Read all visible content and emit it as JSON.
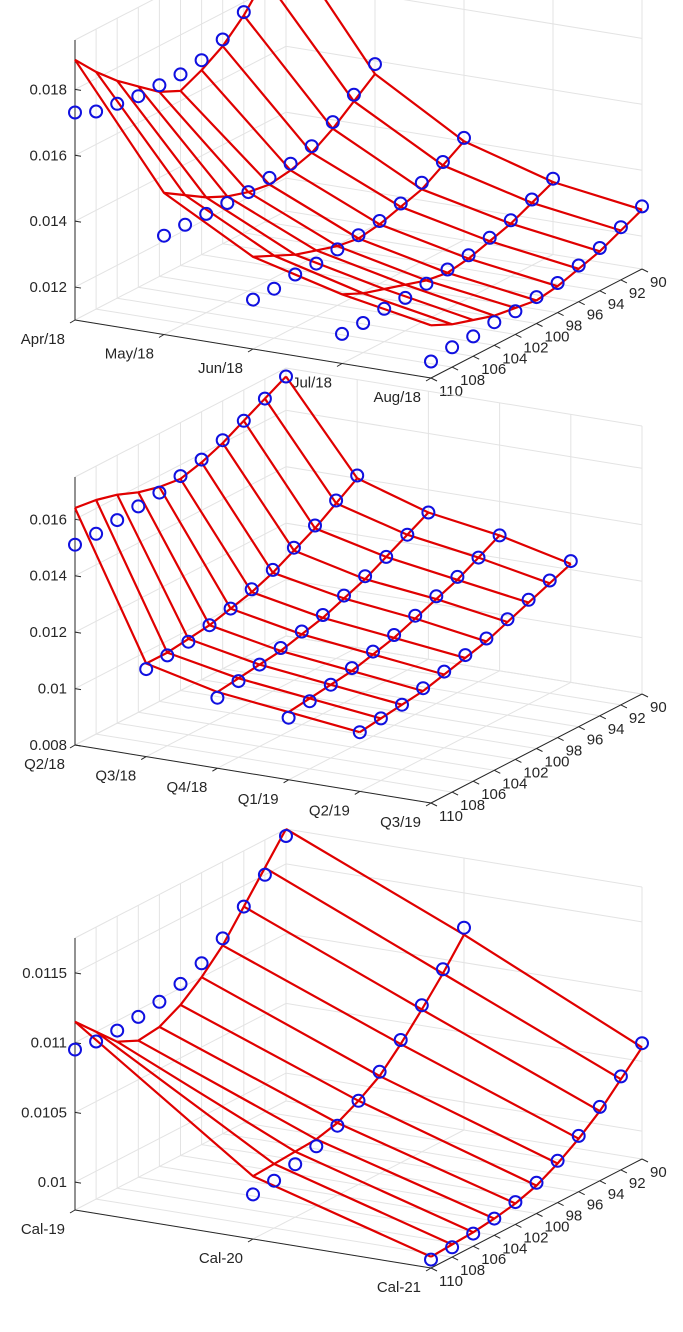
{
  "colors": {
    "surface": "#e00000",
    "markers": "#1010e0",
    "grid": "#e3e3e3",
    "axis": "#262626"
  },
  "chart_data": [
    {
      "type": "surface3d",
      "title": "",
      "grid": true,
      "x_ticks": [
        "Apr/18",
        "May/18",
        "Jun/18",
        "Jul/18",
        "Aug/18"
      ],
      "strike_ticks": [
        "90",
        "92",
        "94",
        "96",
        "98",
        "100",
        "102",
        "104",
        "106",
        "108",
        "110"
      ],
      "z_ticks": [
        "0.012",
        "0.014",
        "0.016",
        "0.018"
      ],
      "zlim": [
        0.011,
        0.0195
      ],
      "strike_range": [
        90,
        110
      ],
      "maturities": [
        0,
        1,
        2,
        3,
        4
      ],
      "strikes": [
        90,
        92,
        94,
        96,
        98,
        100,
        102,
        104,
        106,
        108,
        110
      ],
      "surface": [
        [
          0.0192,
          0.0184,
          0.0176,
          0.017,
          0.0166,
          0.0163,
          0.0166,
          0.0171,
          0.0176,
          0.0182,
          0.0189
        ],
        [
          0.0156,
          0.0151,
          0.0146,
          0.0142,
          0.014,
          0.0139,
          0.014,
          0.0142,
          0.0145,
          0.0149,
          0.0153
        ],
        [
          0.014,
          0.0136,
          0.0132,
          0.013,
          0.0128,
          0.0127,
          0.0128,
          0.013,
          0.0132,
          0.0135,
          0.0138
        ],
        [
          0.0132,
          0.0129,
          0.0126,
          0.0124,
          0.0122,
          0.0121,
          0.0122,
          0.0124,
          0.0126,
          0.0128,
          0.0131
        ],
        [
          0.0128,
          0.0125,
          0.0122,
          0.012,
          0.0118,
          0.0117,
          0.0118,
          0.0119,
          0.0121,
          0.0123,
          0.0126
        ]
      ],
      "points": [
        [
          0.019,
          0.0183,
          0.0177,
          0.0172,
          0.0169,
          0.0168,
          0.0168,
          0.0168,
          0.0169,
          0.017,
          0.0173
        ],
        [
          0.0159,
          0.0153,
          0.0148,
          0.0144,
          0.0142,
          0.0141,
          0.014,
          0.014,
          0.014,
          0.014,
          0.014
        ],
        [
          0.0141,
          0.0137,
          0.0134,
          0.0131,
          0.0129,
          0.0128,
          0.0127,
          0.0126,
          0.0126,
          0.0125,
          0.0125
        ],
        [
          0.0133,
          0.013,
          0.0127,
          0.0125,
          0.0123,
          0.0122,
          0.0121,
          0.012,
          0.012,
          0.0119,
          0.0119
        ],
        [
          0.0129,
          0.0126,
          0.0123,
          0.0121,
          0.0119,
          0.0118,
          0.0117,
          0.0117,
          0.0116,
          0.0116,
          0.0115
        ]
      ]
    },
    {
      "type": "surface3d",
      "title": "",
      "grid": true,
      "x_ticks": [
        "Q2/18",
        "Q3/18",
        "Q4/18",
        "Q1/19",
        "Q2/19",
        "Q3/19"
      ],
      "strike_ticks": [
        "90",
        "92",
        "94",
        "96",
        "98",
        "100",
        "102",
        "104",
        "106",
        "108",
        "110"
      ],
      "z_ticks": [
        "0.008",
        "0.01",
        "0.012",
        "0.014",
        "0.016"
      ],
      "zlim": [
        0.008,
        0.0175
      ],
      "strike_range": [
        90,
        110
      ],
      "maturities": [
        0,
        1,
        2,
        3,
        4
      ],
      "strikes": [
        90,
        92,
        94,
        96,
        98,
        100,
        102,
        104,
        106,
        108,
        110
      ],
      "surface": [
        [
          0.0172,
          0.0168,
          0.0164,
          0.016,
          0.0157,
          0.0155,
          0.0156,
          0.0158,
          0.0161,
          0.0163,
          0.0164
        ],
        [
          0.014,
          0.0135,
          0.013,
          0.0126,
          0.0122,
          0.0119,
          0.0117,
          0.0115,
          0.0114,
          0.0113,
          0.0113
        ],
        [
          0.0132,
          0.0128,
          0.0124,
          0.012,
          0.0117,
          0.0114,
          0.0112,
          0.011,
          0.0109,
          0.0108,
          0.0107
        ],
        [
          0.0128,
          0.0124,
          0.012,
          0.0117,
          0.0114,
          0.0111,
          0.0109,
          0.0107,
          0.0106,
          0.0105,
          0.0104
        ],
        [
          0.0122,
          0.0119,
          0.0116,
          0.0113,
          0.011,
          0.0108,
          0.0106,
          0.0104,
          0.0103,
          0.0102,
          0.0101
        ]
      ],
      "points": [
        [
          0.0172,
          0.0168,
          0.0164,
          0.0161,
          0.0158,
          0.0156,
          0.0154,
          0.0153,
          0.0152,
          0.0151,
          0.0151
        ],
        [
          0.0141,
          0.0136,
          0.0131,
          0.0127,
          0.0123,
          0.012,
          0.0117,
          0.0115,
          0.0113,
          0.0112,
          0.0111
        ],
        [
          0.0132,
          0.0128,
          0.0124,
          0.0121,
          0.0118,
          0.0115,
          0.0113,
          0.0111,
          0.0109,
          0.0107,
          0.0105
        ],
        [
          0.0128,
          0.0124,
          0.0121,
          0.0118,
          0.0115,
          0.0112,
          0.011,
          0.0108,
          0.0106,
          0.0104,
          0.0102
        ],
        [
          0.0123,
          0.012,
          0.0117,
          0.0114,
          0.0111,
          0.0109,
          0.0107,
          0.0105,
          0.0103,
          0.0102,
          0.0101
        ]
      ]
    },
    {
      "type": "surface3d",
      "title": "",
      "grid": true,
      "x_ticks": [
        "Cal-19",
        "Cal-20",
        "Cal-21"
      ],
      "strike_ticks": [
        "90",
        "92",
        "94",
        "96",
        "98",
        "100",
        "102",
        "104",
        "106",
        "108",
        "110"
      ],
      "z_ticks": [
        "0.01",
        "0.0105",
        "0.011",
        "0.0115"
      ],
      "zlim": [
        0.0098,
        0.01175
      ],
      "strike_range": [
        90,
        110
      ],
      "maturities": [
        0,
        1,
        2
      ],
      "strikes": [
        90,
        92,
        94,
        96,
        98,
        100,
        102,
        104,
        106,
        108,
        110
      ],
      "surface": [
        [
          0.01175,
          0.01155,
          0.01135,
          0.01115,
          0.011,
          0.01088,
          0.0108,
          0.01078,
          0.01085,
          0.011,
          0.01115
        ],
        [
          0.0112,
          0.011,
          0.01082,
          0.01065,
          0.0105,
          0.0104,
          0.01032,
          0.01028,
          0.01027,
          0.01026,
          0.01025
        ],
        [
          0.0106,
          0.01045,
          0.0103,
          0.01018,
          0.01008,
          0.01,
          0.00995,
          0.00992,
          0.0099,
          0.00989,
          0.00988
        ]
      ],
      "points": [
        [
          0.0117,
          0.0115,
          0.01135,
          0.0112,
          0.0111,
          0.01103,
          0.01098,
          0.01095,
          0.01093,
          0.01093,
          0.01095
        ],
        [
          0.01125,
          0.01103,
          0.01085,
          0.01068,
          0.01053,
          0.0104,
          0.0103,
          0.01023,
          0.01018,
          0.01014,
          0.01012
        ],
        [
          0.01063,
          0.01047,
          0.01033,
          0.0102,
          0.0101,
          0.01002,
          0.00996,
          0.00992,
          0.00989,
          0.00987,
          0.00986
        ]
      ]
    }
  ]
}
